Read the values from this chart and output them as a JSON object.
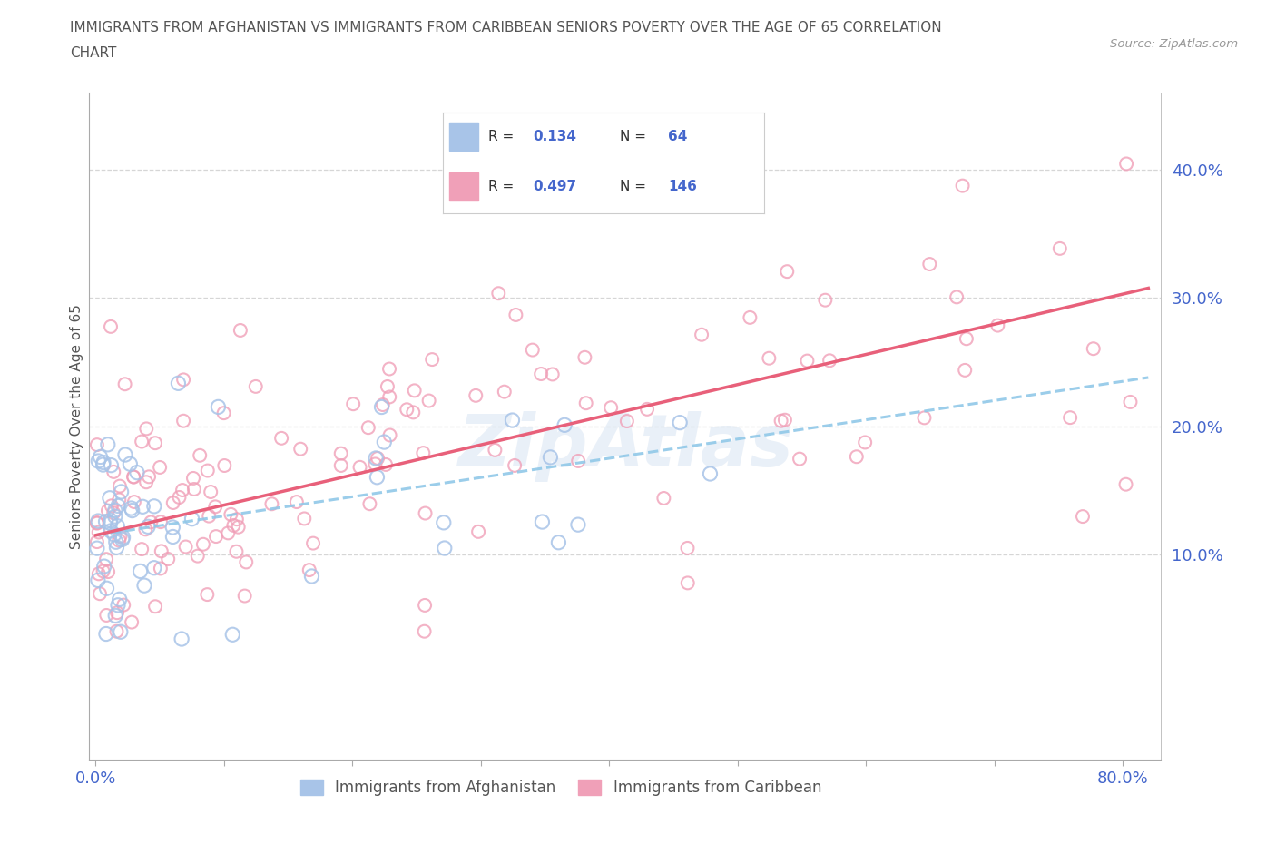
{
  "title_line1": "IMMIGRANTS FROM AFGHANISTAN VS IMMIGRANTS FROM CARIBBEAN SENIORS POVERTY OVER THE AGE OF 65 CORRELATION",
  "title_line2": "CHART",
  "source_text": "Source: ZipAtlas.com",
  "ylabel": "Seniors Poverty Over the Age of 65",
  "legend_R1": "0.134",
  "legend_N1": "64",
  "legend_R2": "0.497",
  "legend_N2": "146",
  "color_afghanistan": "#a8c4e8",
  "color_caribbean": "#f0a0b8",
  "color_line_afghanistan": "#90c8e8",
  "color_line_caribbean": "#e8607a",
  "title_color": "#666666",
  "label_color": "#4466cc",
  "grid_color": "#cccccc",
  "background_color": "#ffffff",
  "legend_box_color": "#e8f0f8",
  "xlim_min": -0.005,
  "xlim_max": 0.83,
  "ylim_min": -0.06,
  "ylim_max": 0.46
}
